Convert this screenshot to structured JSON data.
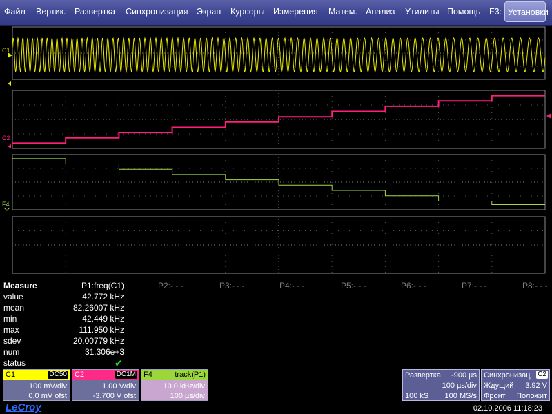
{
  "menu": {
    "items": [
      "Файл",
      "Вертик.",
      "Развертка",
      "Синхронизация",
      "Экран",
      "Курсоры",
      "Измерения",
      "Матем.",
      "Анализ",
      "Утилиты",
      "Помощь"
    ],
    "f3_label": "F3:",
    "setup_label": "Установки"
  },
  "traces": {
    "c1_label": "C1",
    "c2_label": "C2",
    "f4_label": "F4",
    "c1_color": "#e8e800",
    "c2_color": "#ff1f7a",
    "f4_color": "#a6d84a",
    "grid_color": "#8a8a8a"
  },
  "chart_data": {
    "type": "line",
    "series": [
      {
        "name": "C1",
        "description": "sinusoidal frequency-swept signal, roughly 120 cycles across screen with frequency decreasing left to right"
      },
      {
        "name": "C2",
        "steps": [
          -3.7,
          -3.5,
          -3.3,
          -3.1,
          -2.9,
          -2.7,
          -2.5,
          -2.3,
          -2.1,
          -1.9
        ],
        "unit": "V"
      },
      {
        "name": "F4",
        "description": "track(P1) frequency trend decreasing in steps from about 112 kHz to about 42 kHz",
        "steps_khz": [
          111.9,
          104,
          96,
          88,
          80,
          72,
          64,
          56,
          48,
          42.8
        ]
      }
    ]
  },
  "measure": {
    "title": "Measure",
    "p1_header": "P1:freq(C1)",
    "other_params": [
      "P2:- - -",
      "P3:- - -",
      "P4:- - -",
      "P5:- - -",
      "P6:- - -",
      "P7:- - -",
      "P8:- - -"
    ],
    "rows": [
      {
        "label": "value",
        "val": "42.772 kHz"
      },
      {
        "label": "mean",
        "val": "82.26007 kHz"
      },
      {
        "label": "min",
        "val": "42.449 kHz"
      },
      {
        "label": "max",
        "val": "111.950 kHz"
      },
      {
        "label": "sdev",
        "val": "20.00779 kHz"
      },
      {
        "label": "num",
        "val": "31.306e+3"
      },
      {
        "label": "status",
        "val": ""
      }
    ],
    "status_icon": "check-icon"
  },
  "channels": {
    "c1": {
      "name": "C1",
      "tag": "DC50",
      "line1": "100 mV/div",
      "line2": "0.0 mV ofst",
      "header_color": "#ffff00",
      "text_color": "#000"
    },
    "c2": {
      "name": "C2",
      "tag": "DC1M",
      "line1": "1.00 V/div",
      "line2": "-3.700 V ofst",
      "header_color": "#ff2a86",
      "text_color": "#fff"
    },
    "f4": {
      "name": "F4",
      "tag": "track(P1)",
      "line1": "10.0 kHz/div",
      "line2": "100 µs/div",
      "header_color": "#9bd63a",
      "text_color": "#000"
    }
  },
  "timebase": {
    "title": "Развертка",
    "delay": "-900 µs",
    "scale": "100 µs/div",
    "samples": "100 kS",
    "rate": "100 MS/s"
  },
  "trigger": {
    "title": "Синхронизац",
    "src": "C2",
    "mode": "Ждущий",
    "level": "3.92 V",
    "slope": "Фронт",
    "polarity": "Положит"
  },
  "footer": {
    "logo": "LeCroy",
    "datetime": "02.10.2006 11:18:23"
  }
}
